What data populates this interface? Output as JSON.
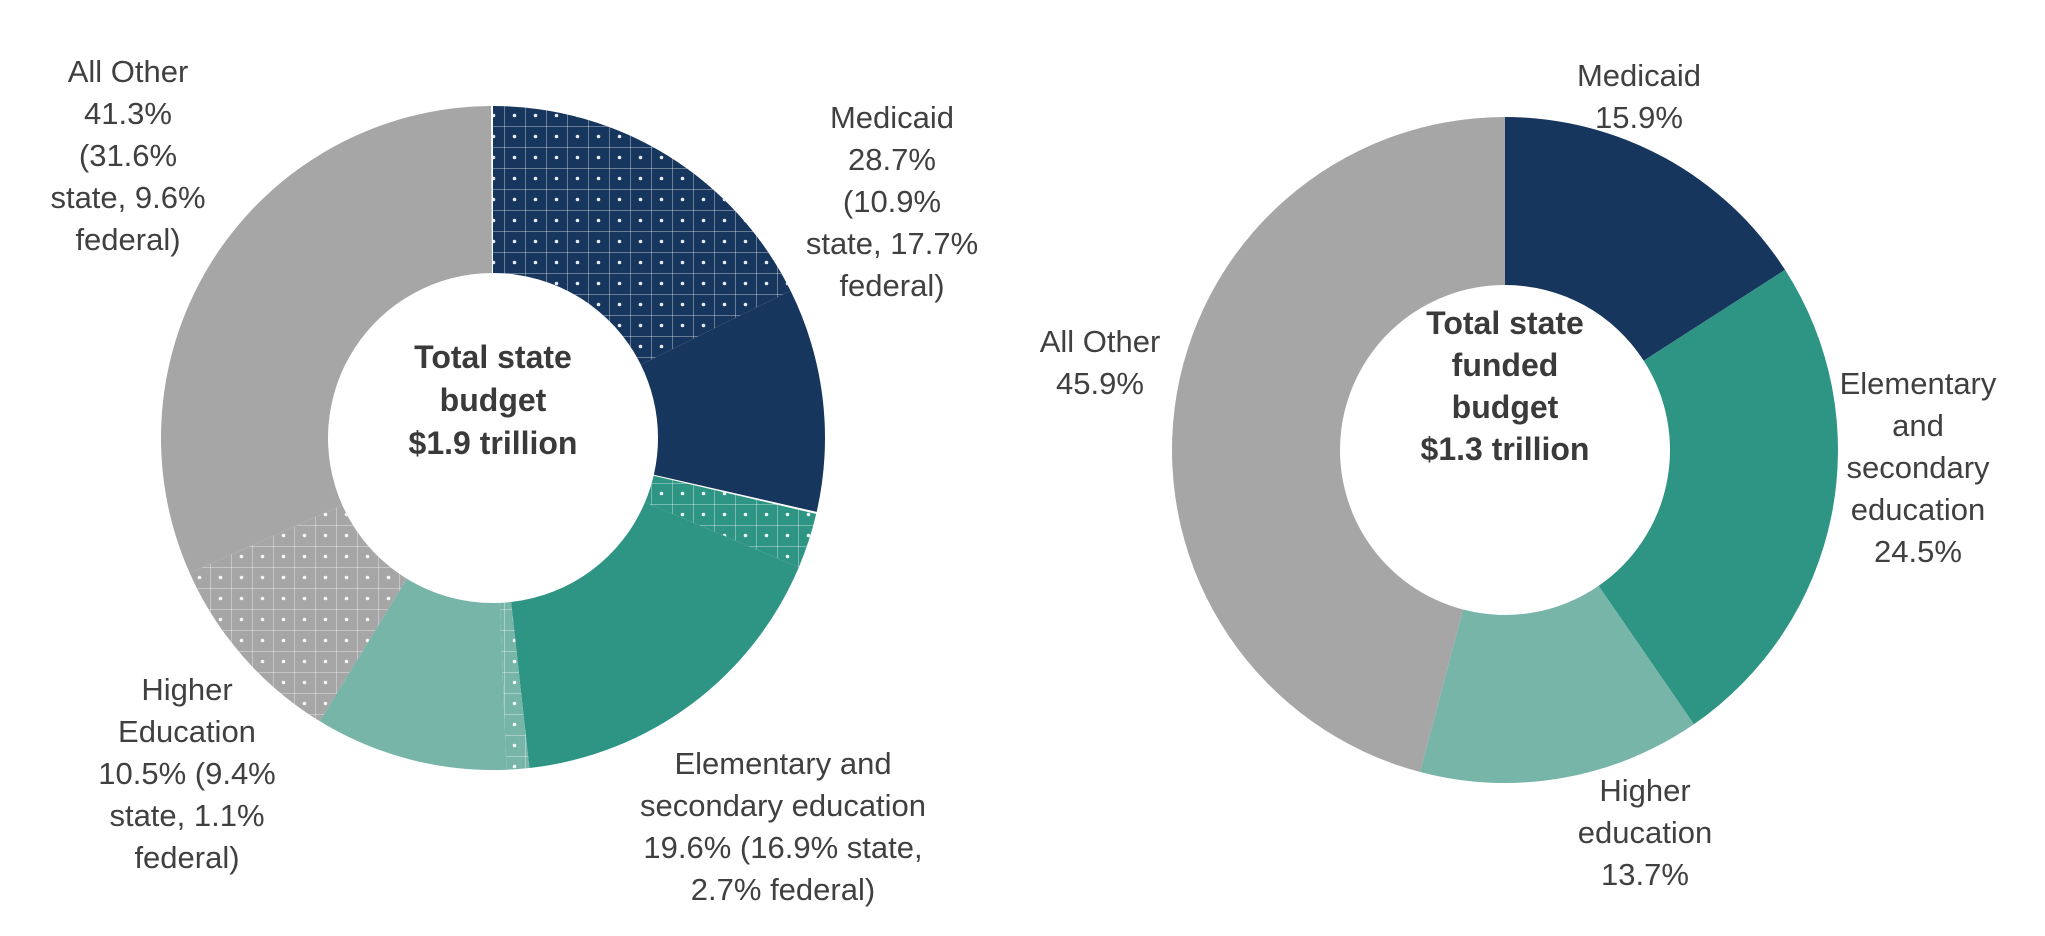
{
  "colors": {
    "medicaid": "#17365d",
    "elementary": "#2e9483",
    "higher": "#76b5a8",
    "other": "#a6a6a6"
  },
  "chart_data": [
    {
      "type": "donut",
      "center_label": [
        "Total state",
        "budget",
        "$1.9 trillion"
      ],
      "slices": [
        {
          "name": "Medicaid",
          "state": 10.9,
          "federal": 17.7,
          "value": 28.7,
          "color_key": "medicaid",
          "label": [
            "Medicaid",
            "28.7%",
            "(10.9%",
            "state, 17.7%",
            "federal)"
          ]
        },
        {
          "name": "Elementary and secondary education",
          "state": 16.9,
          "federal": 2.7,
          "value": 19.6,
          "color_key": "elementary",
          "label": [
            "Elementary and",
            "secondary education",
            "19.6% (16.9% state,",
            "2.7% federal)"
          ]
        },
        {
          "name": "Higher Education",
          "state": 9.4,
          "federal": 1.1,
          "value": 10.5,
          "color_key": "higher",
          "label": [
            "Higher",
            "Education",
            "10.5% (9.4%",
            "state, 1.1%",
            "federal)"
          ]
        },
        {
          "name": "All Other",
          "state": 31.6,
          "federal": 9.6,
          "value": 41.3,
          "color_key": "other",
          "label": [
            "All Other",
            "41.3%",
            "(31.6%",
            "state, 9.6%",
            "federal)"
          ]
        }
      ]
    },
    {
      "type": "donut",
      "center_label": [
        "Total state",
        "funded",
        "budget",
        "$1.3 trillion"
      ],
      "slices": [
        {
          "name": "Medicaid",
          "value": 15.9,
          "color_key": "medicaid",
          "label": [
            "Medicaid",
            "15.9%"
          ]
        },
        {
          "name": "Elementary and secondary education",
          "value": 24.5,
          "color_key": "elementary",
          "label": [
            "Elementary",
            "and",
            "secondary",
            "education",
            "24.5%"
          ]
        },
        {
          "name": "Higher education",
          "value": 13.7,
          "color_key": "higher",
          "label": [
            "Higher",
            "education",
            "13.7%"
          ]
        },
        {
          "name": "All Other",
          "value": 45.9,
          "color_key": "other",
          "label": [
            "All Other",
            "45.9%"
          ]
        }
      ]
    }
  ]
}
